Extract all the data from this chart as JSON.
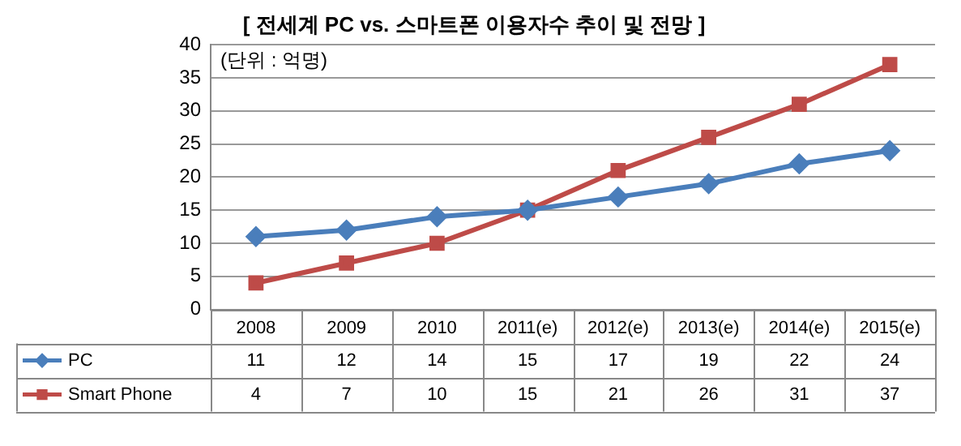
{
  "chart_data": {
    "type": "line",
    "title": "[ 전세계 PC vs. 스마트폰 이용자수 추이 및 전망 ]",
    "annotations": [
      "(단위 : 억명)"
    ],
    "categories": [
      "2008",
      "2009",
      "2010",
      "2011(e)",
      "2012(e)",
      "2013(e)",
      "2014(e)",
      "2015(e)"
    ],
    "series": [
      {
        "name": "PC",
        "color": "#4a7ebb",
        "marker": "diamond",
        "values": [
          11,
          12,
          14,
          15,
          17,
          19,
          22,
          24
        ]
      },
      {
        "name": "Smart Phone",
        "color": "#be4b48",
        "marker": "square",
        "values": [
          4,
          7,
          10,
          15,
          21,
          26,
          31,
          37
        ]
      }
    ],
    "ylim": [
      0,
      40
    ],
    "yticks": [
      0,
      5,
      10,
      15,
      20,
      25,
      30,
      35,
      40
    ],
    "grid": "y",
    "legend": "bottom",
    "data_labels": true,
    "line_style": "solid"
  }
}
